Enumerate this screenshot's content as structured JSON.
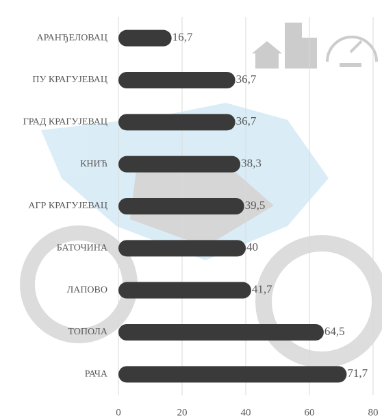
{
  "chart_data": {
    "type": "bar",
    "orientation": "horizontal",
    "categories": [
      "АРАНЂЕЛОВАЦ",
      "ПУ КРАГУЈЕВАЦ",
      "ГРАД КРАГУЈЕВАЦ",
      "КНИЋ",
      "АГР КРАГУЈЕВАЦ",
      "БАТОЧИНА",
      "ЛАПОВО",
      "ТОПОЛА",
      "РАЧА"
    ],
    "values": [
      16.7,
      36.7,
      36.7,
      38.3,
      39.5,
      40,
      41.7,
      64.5,
      71.7
    ],
    "value_labels": [
      "16,7",
      "36,7",
      "36,7",
      "38,3",
      "39,5",
      "40",
      "41,7",
      "64,5",
      "71,7"
    ],
    "color": "#3a3a3a",
    "xlim": [
      0,
      80
    ],
    "xticks": [
      0,
      20,
      40,
      60,
      80
    ],
    "grid": true
  }
}
